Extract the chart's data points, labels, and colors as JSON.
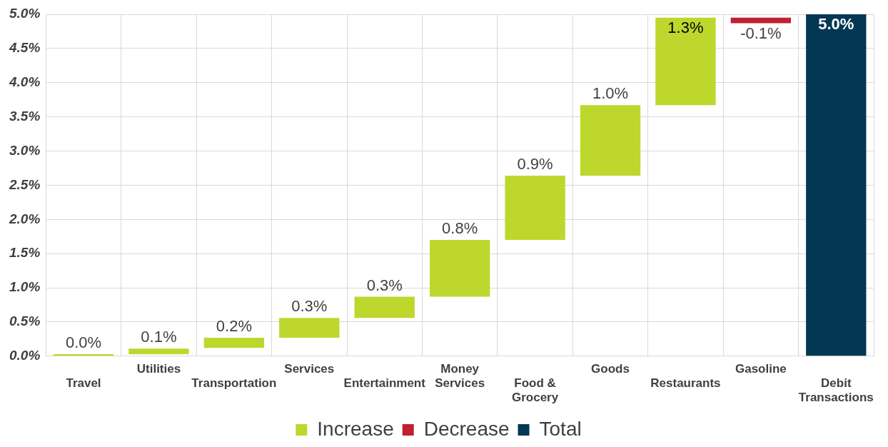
{
  "chart_data": {
    "type": "bar",
    "categories": [
      "Travel",
      "Utilities",
      "Transportation",
      "Services",
      "Entertainment",
      "Money Services",
      "Food & Grocery",
      "Goods",
      "Restaurants",
      "Gasoline",
      "Debit Transactions"
    ],
    "series": [
      {
        "name": "Increase",
        "color": "#bdd72d",
        "values": [
          0.03,
          0.08,
          0.15,
          0.29,
          0.31,
          0.83,
          0.94,
          1.03,
          1.28,
          null,
          null
        ],
        "base": [
          0,
          0.03,
          0.12,
          0.27,
          0.56,
          0.87,
          1.7,
          2.64,
          3.67,
          null,
          null
        ],
        "value_labels": [
          "0.0%",
          "0.1%",
          "0.2%",
          "0.3%",
          "0.3%",
          "0.8%",
          "0.9%",
          "1.0%",
          "1.3%",
          null,
          null
        ]
      },
      {
        "name": "Decrease",
        "color": "#c0202f",
        "values": [
          null,
          null,
          null,
          null,
          null,
          null,
          null,
          null,
          null,
          -0.08,
          null
        ],
        "base": [
          null,
          null,
          null,
          null,
          null,
          null,
          null,
          null,
          null,
          4.95,
          null
        ],
        "value_labels": [
          null,
          null,
          null,
          null,
          null,
          null,
          null,
          null,
          null,
          "-0.1%",
          null
        ]
      },
      {
        "name": "Total",
        "color": "#043754",
        "values": [
          null,
          null,
          null,
          null,
          null,
          null,
          null,
          null,
          null,
          null,
          5.0
        ],
        "base": [
          null,
          null,
          null,
          null,
          null,
          null,
          null,
          null,
          null,
          null,
          0
        ],
        "value_labels": [
          null,
          null,
          null,
          null,
          null,
          null,
          null,
          null,
          null,
          null,
          "5.0%"
        ]
      }
    ],
    "ylim": [
      0,
      5
    ],
    "yticks": [
      {
        "value": 0,
        "label": "0.0%"
      },
      {
        "value": 0.5,
        "label": "0.5%"
      },
      {
        "value": 1,
        "label": "1.0%"
      },
      {
        "value": 1.5,
        "label": "1.5%"
      },
      {
        "value": 2,
        "label": "2.0%"
      },
      {
        "value": 2.5,
        "label": "2.5%"
      },
      {
        "value": 3,
        "label": "3.0%"
      },
      {
        "value": 3.5,
        "label": "3.5%"
      },
      {
        "value": 4,
        "label": "4.0%"
      },
      {
        "value": 4.5,
        "label": "4.5%"
      },
      {
        "value": 5,
        "label": "5.0%"
      }
    ],
    "grid": true,
    "legend": "bottom"
  }
}
